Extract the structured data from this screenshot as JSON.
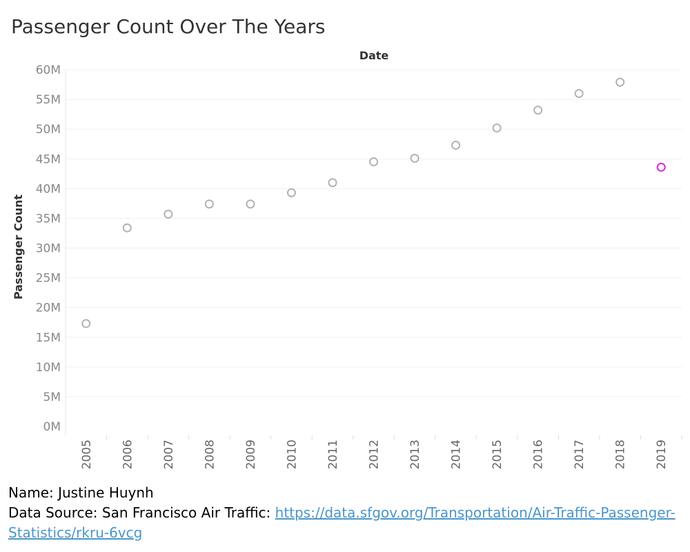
{
  "page": {
    "title": "Passenger Count Over The Years",
    "footer": {
      "name_line": "Name: Justine Huynh",
      "source_label": "Data Source: San Francisco Air Traffic:",
      "source_link": "https://data.sfgov.org/Transportation/Air-Traffic-Passenger-Statistics/rkru-6vcg"
    }
  },
  "chart_data": {
    "type": "scatter",
    "title": "Passenger Count Over The Years",
    "xlabel": "Date",
    "ylabel": "Passenger Count",
    "x": [
      "2005",
      "2006",
      "2007",
      "2008",
      "2009",
      "2010",
      "2011",
      "2012",
      "2013",
      "2014",
      "2015",
      "2016",
      "2017",
      "2018",
      "2019"
    ],
    "y": [
      17.3,
      33.4,
      35.7,
      37.4,
      37.4,
      39.3,
      41.0,
      44.5,
      45.1,
      47.3,
      50.2,
      53.2,
      56.0,
      57.9,
      43.6
    ],
    "y_unit_suffix": "M",
    "ylim": [
      0,
      60
    ],
    "yticks": [
      0,
      5,
      10,
      15,
      20,
      25,
      30,
      35,
      40,
      45,
      50,
      55,
      60
    ],
    "ytick_labels": [
      "0M",
      "5M",
      "10M",
      "15M",
      "20M",
      "25M",
      "30M",
      "35M",
      "40M",
      "45M",
      "50M",
      "55M",
      "60M"
    ],
    "marker_color": "#b8b0b0",
    "highlight_color": "#e020e0",
    "highlight_index": 14,
    "grid": true
  }
}
